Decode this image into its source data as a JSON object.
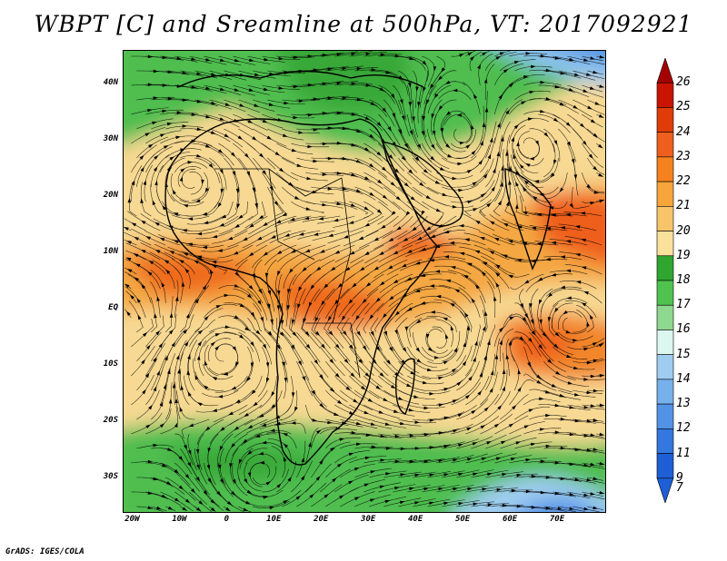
{
  "title": "WBPT [C] and Sreamline at 500hPa, VT: 2017092921",
  "credit": "GrADS: IGES/COLA",
  "map": {
    "lon_range": [
      -22,
      80
    ],
    "lat_range": [
      -36,
      46
    ],
    "lat_ticks": [
      "40N",
      "30N",
      "20N",
      "10N",
      "EQ",
      "10S",
      "20S",
      "30S"
    ],
    "lon_ticks": [
      "20W",
      "10W",
      "0",
      "10E",
      "20E",
      "30E",
      "40E",
      "50E",
      "60E",
      "70E"
    ],
    "field": "WBPT",
    "units": "C",
    "level": "500hPa",
    "valid_time": "2017092921",
    "overlay": "streamlines"
  },
  "colorbar": {
    "labels": [
      "26",
      "25",
      "24",
      "23",
      "22",
      "21",
      "20",
      "19",
      "18",
      "17",
      "16",
      "15",
      "14",
      "13",
      "12",
      "11",
      "9",
      "7"
    ],
    "colors": [
      "#a50000",
      "#c81400",
      "#e03c0a",
      "#ef5f1e",
      "#f5821e",
      "#f6a53a",
      "#f8c469",
      "#fbe29c",
      "#30a530",
      "#4fc24f",
      "#8fd88f",
      "#dbf7ef",
      "#9fcdf0",
      "#77b1ec",
      "#5293e6",
      "#3377df",
      "#1e5fd6",
      "#1e5fd6"
    ]
  }
}
